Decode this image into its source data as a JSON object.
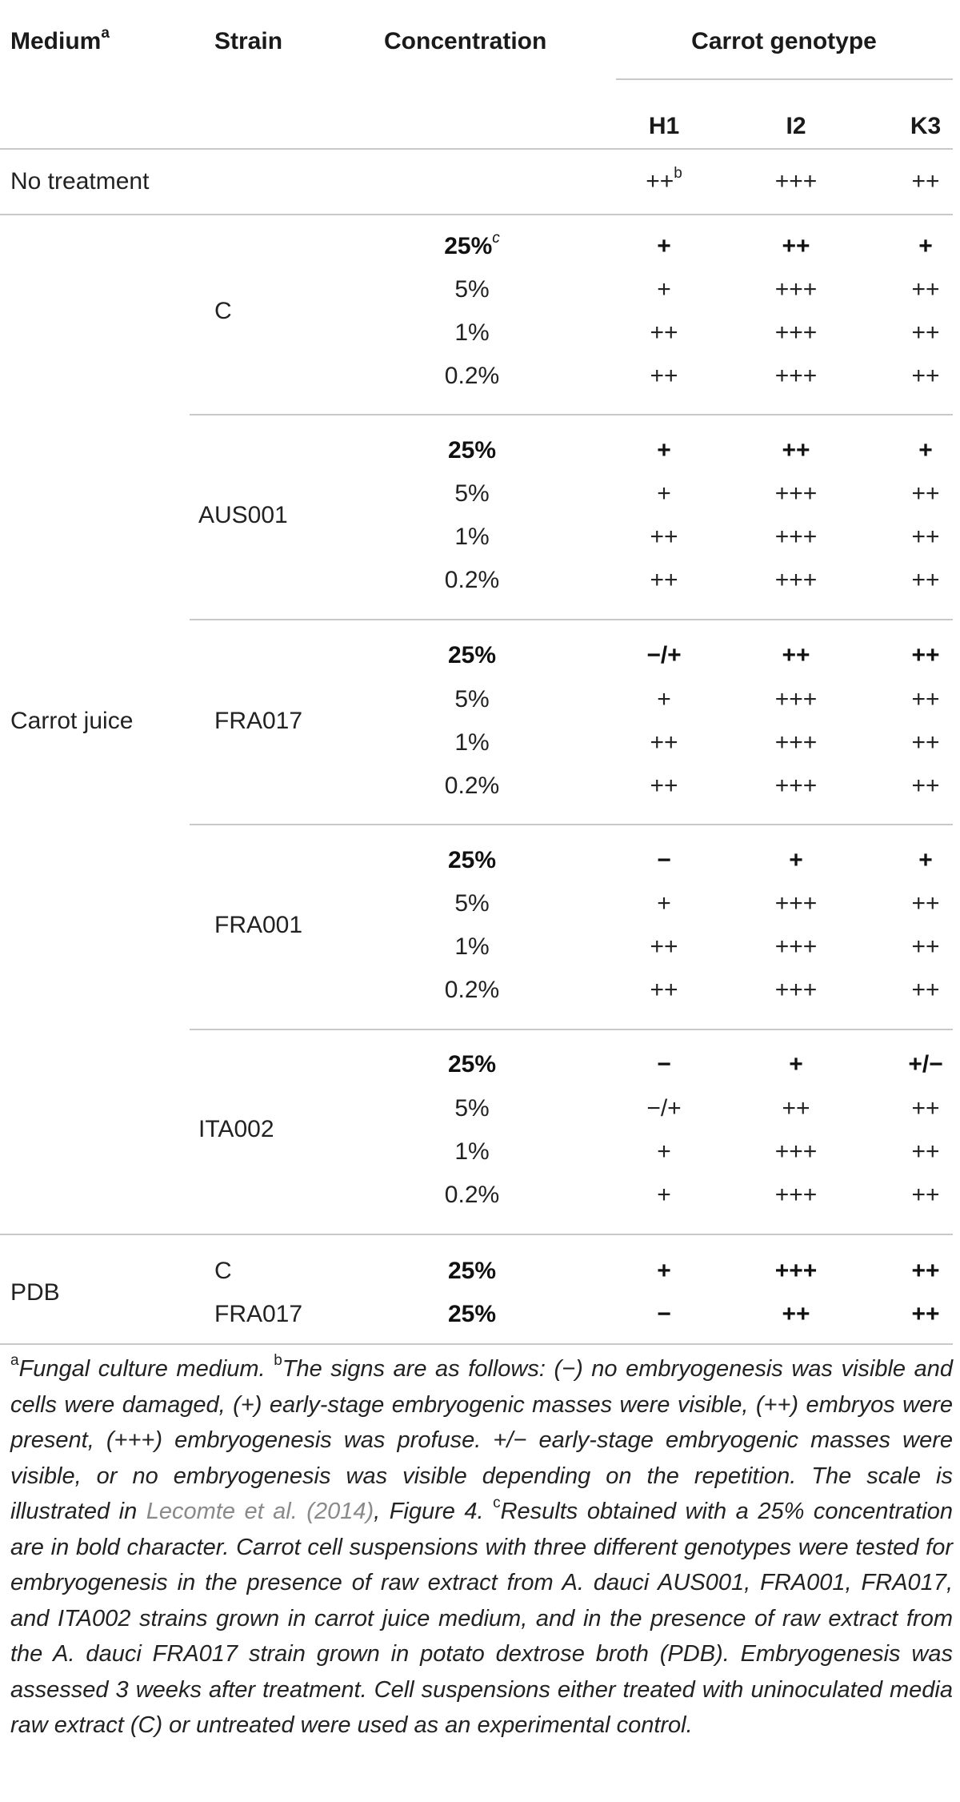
{
  "header": {
    "medium": "Medium",
    "medium_sup": "a",
    "strain": "Strain",
    "concentration": "Concentration",
    "genotype": "Carrot genotype",
    "h1": "H1",
    "i2": "I2",
    "k3": "K3"
  },
  "no_treatment": {
    "label": "No treatment",
    "h1": "++",
    "h1_sup": "b",
    "i2": "+++",
    "k3": "++"
  },
  "carrot_juice": {
    "medium": "Carrot juice",
    "groups": [
      {
        "strain": "C",
        "rows": [
          {
            "conc": "25%",
            "conc_sup": "c",
            "h1": "+",
            "i2": "++",
            "k3": "+"
          },
          {
            "conc": "5%",
            "h1": "+",
            "i2": "+++",
            "k3": "++"
          },
          {
            "conc": "1%",
            "h1": "++",
            "i2": "+++",
            "k3": "++"
          },
          {
            "conc": "0.2%",
            "h1": "++",
            "i2": "+++",
            "k3": "++"
          }
        ]
      },
      {
        "strain": "AUS001",
        "rows": [
          {
            "conc": "25%",
            "h1": "+",
            "i2": "++",
            "k3": "+"
          },
          {
            "conc": "5%",
            "h1": "+",
            "i2": "+++",
            "k3": "++"
          },
          {
            "conc": "1%",
            "h1": "++",
            "i2": "+++",
            "k3": "++"
          },
          {
            "conc": "0.2%",
            "h1": "++",
            "i2": "+++",
            "k3": "++"
          }
        ]
      },
      {
        "strain": "FRA017",
        "rows": [
          {
            "conc": "25%",
            "h1": "−/+",
            "i2": "++",
            "k3": "++"
          },
          {
            "conc": "5%",
            "h1": "+",
            "i2": "+++",
            "k3": "++"
          },
          {
            "conc": "1%",
            "h1": "++",
            "i2": "+++",
            "k3": "++"
          },
          {
            "conc": "0.2%",
            "h1": "++",
            "i2": "+++",
            "k3": "++"
          }
        ]
      },
      {
        "strain": "FRA001",
        "rows": [
          {
            "conc": "25%",
            "h1": "−",
            "i2": "+",
            "k3": "+"
          },
          {
            "conc": "5%",
            "h1": "+",
            "i2": "+++",
            "k3": "++"
          },
          {
            "conc": "1%",
            "h1": "++",
            "i2": "+++",
            "k3": "++"
          },
          {
            "conc": "0.2%",
            "h1": "++",
            "i2": "+++",
            "k3": "++"
          }
        ]
      },
      {
        "strain": "ITA002",
        "rows": [
          {
            "conc": "25%",
            "h1": "−",
            "i2": "+",
            "k3": "+/−"
          },
          {
            "conc": "5%",
            "h1": "−/+",
            "i2": "++",
            "k3": "++"
          },
          {
            "conc": "1%",
            "h1": "+",
            "i2": "+++",
            "k3": "++"
          },
          {
            "conc": "0.2%",
            "h1": "+",
            "i2": "+++",
            "k3": "++"
          }
        ]
      }
    ]
  },
  "pdb": {
    "medium": "PDB",
    "rows": [
      {
        "strain": "C",
        "conc": "25%",
        "h1": "+",
        "i2": "+++",
        "k3": "++"
      },
      {
        "strain": "FRA017",
        "conc": "25%",
        "h1": "−",
        "i2": "++",
        "k3": "++"
      }
    ]
  },
  "footnotes": {
    "a_mark": "a",
    "a_text": "Fungal culture medium. ",
    "b_mark": "b",
    "b_text": "The signs are as follows: (−) no embryogenesis was visible and cells were damaged, (+) early-stage embryogenic masses were visible, (++) embryos were present, (+++) embryogenesis was profuse. +/− early-stage embryogenic masses were visible, or no embryogenesis was visible depending on the repetition. The scale is illustrated in ",
    "link_text": "Lecomte et al. (2014)",
    "b_tail": ", Figure 4.",
    "c_mark": "c",
    "c_text": "Results obtained with a 25% concentration are in bold character. Carrot cell suspensions with three different genotypes were tested for embryogenesis in the presence of raw extract from A. dauci AUS001, FRA001, FRA017, and ITA002 strains grown in carrot juice medium, and in the presence of raw extract from the A. dauci FRA017 strain grown in potato dextrose broth (PDB). Embryogenesis was assessed 3 weeks after treatment. Cell suspensions either treated with uninoculated media raw extract (C) or untreated were used as an experimental control."
  }
}
